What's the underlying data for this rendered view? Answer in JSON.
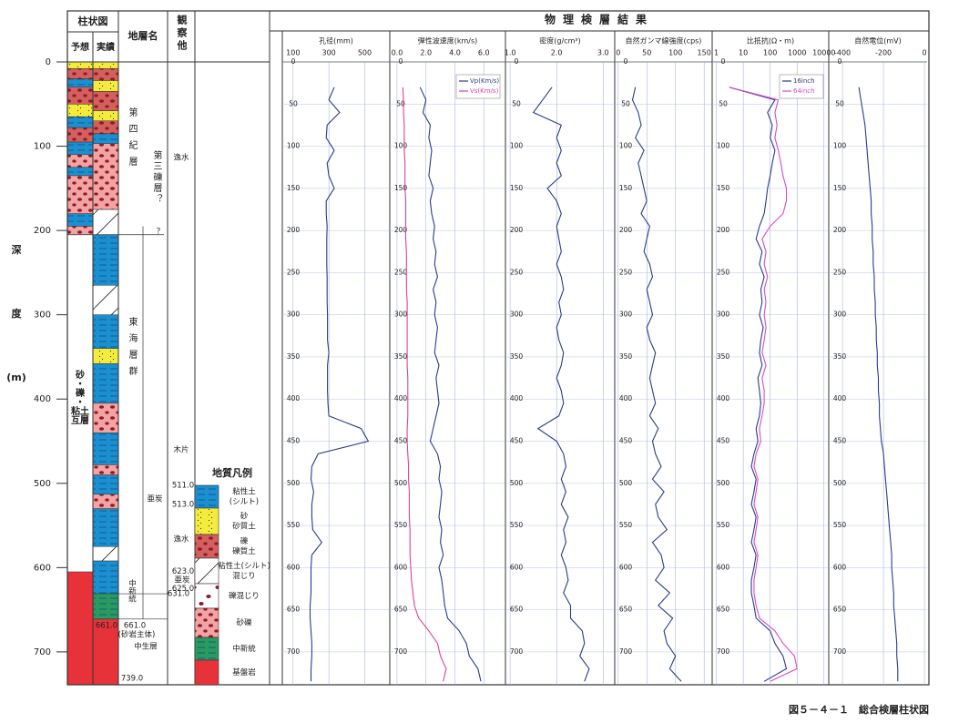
{
  "header": {
    "column_title": "柱状図",
    "predicted": "予想",
    "actual": "実績",
    "strata": "地層名",
    "observations": "観察他"
  },
  "depth_axis": {
    "label": [
      "深",
      "度",
      "(m)"
    ],
    "ylim": [
      0,
      739
    ],
    "yticks": [
      0,
      100,
      200,
      300,
      400,
      500,
      600,
      700
    ]
  },
  "column": {
    "legend_title": "地質凡例",
    "lithologies": [
      {
        "label": [
          "粘性土",
          "(シルト)"
        ],
        "color": "#1c8fd0",
        "pattern": "lines",
        "predicted": [
          [
            20,
            30
          ],
          [
            65,
            78
          ],
          [
            95,
            110
          ],
          [
            125,
            135
          ],
          [
            180,
            195
          ]
        ],
        "actual": [
          [
            85,
            97
          ],
          [
            205,
            265
          ],
          [
            300,
            340
          ],
          [
            358,
            405
          ],
          [
            440,
            478
          ],
          [
            490,
            513
          ],
          [
            530,
            575
          ],
          [
            592,
            631
          ]
        ]
      },
      {
        "label": [
          "砂",
          "砂質土"
        ],
        "color": "#f3ec3c",
        "pattern": "specks",
        "predicted": [
          [
            0,
            8
          ],
          [
            50,
            65
          ]
        ],
        "actual": [
          [
            0,
            8
          ],
          [
            22,
            35
          ],
          [
            58,
            70
          ],
          [
            340,
            358
          ]
        ]
      },
      {
        "label": [
          "礫",
          "礫質土"
        ],
        "color": "#d4605e",
        "pattern": "dots",
        "predicted": [
          [
            8,
            20
          ],
          [
            30,
            50
          ],
          [
            78,
            95
          ]
        ],
        "actual": [
          [
            8,
            22
          ],
          [
            35,
            58
          ],
          [
            70,
            85
          ]
        ]
      },
      {
        "label": [
          "粘性土(シルト)",
          "混じり"
        ],
        "color": "#ffffff",
        "pattern": "slash",
        "actual": [
          [
            175,
            205
          ],
          [
            265,
            300
          ],
          [
            575,
            592
          ]
        ]
      },
      {
        "label": [
          "礫混じり"
        ],
        "color": "#ffffff",
        "pattern": "dot-slash"
      },
      {
        "label": [
          "砂礫"
        ],
        "color": "#f4a3a3",
        "pattern": "dots",
        "predicted": [
          [
            110,
            125
          ],
          [
            135,
            180
          ],
          [
            195,
            205
          ]
        ],
        "actual": [
          [
            97,
            175
          ],
          [
            405,
            440
          ],
          [
            478,
            490
          ],
          [
            513,
            530
          ]
        ]
      },
      {
        "label": [
          "中新統"
        ],
        "color": "#2a9a60",
        "pattern": "lines",
        "actual": [
          [
            631,
            661
          ]
        ]
      },
      {
        "label": [
          "基盤岩"
        ],
        "color": "#e8323a",
        "pattern": "none",
        "predicted": [
          [
            605,
            739
          ]
        ],
        "actual": [
          [
            661,
            739
          ]
        ]
      }
    ],
    "predicted_note": [
      "砂",
      "・",
      "礫",
      "・",
      "粘土",
      "互層"
    ],
    "notes": [
      "第四紀層",
      "第三礫層？",
      "？",
      "東海層群",
      "亜炭",
      "中新統",
      "(砂岩主体)",
      "中生層",
      "逸水",
      "木片",
      "逸水",
      "亜炭"
    ],
    "depth_marks": [
      {
        "value": 511,
        "label": "511.0"
      },
      {
        "value": 513,
        "label": "513.0"
      },
      {
        "value": 623,
        "label": "623.0"
      },
      {
        "value": 625,
        "label": "625.0"
      },
      {
        "value": 631,
        "label": "631.0"
      },
      {
        "value": 661,
        "label": "661.0"
      },
      {
        "value": 661,
        "label": "661.0"
      },
      {
        "value": 739,
        "label": "739.0"
      }
    ]
  },
  "logs": {
    "title": "物理検層結果",
    "grid": true,
    "depth": [
      30,
      45,
      60,
      75,
      90,
      105,
      120,
      135,
      150,
      165,
      180,
      195,
      210,
      225,
      240,
      255,
      270,
      285,
      300,
      315,
      330,
      345,
      360,
      375,
      390,
      405,
      420,
      435,
      450,
      465,
      480,
      495,
      510,
      525,
      540,
      555,
      570,
      585,
      600,
      615,
      630,
      645,
      660,
      675,
      690,
      705,
      720,
      735
    ],
    "depth_ticks": [
      0,
      50,
      100,
      150,
      200,
      250,
      300,
      350,
      400,
      450,
      500,
      550,
      600,
      650,
      700
    ],
    "panels": [
      {
        "type": "line",
        "title": "孔径(mm)",
        "xlim": [
          40,
          640
        ],
        "xticks": [
          100,
          300,
          500
        ],
        "series": [
          {
            "color": "#2b3a8c",
            "values": [
              330,
              300,
              360,
              290,
              285,
              330,
              290,
              300,
              330,
              285,
              285,
              290,
              288,
              288,
              288,
              290,
              290,
              290,
              292,
              292,
              292,
              300,
              292,
              292,
              292,
              295,
              300,
              480,
              520,
              240,
              205,
              200,
              215,
              205,
              205,
              210,
              260,
              205,
              200,
              200,
              200,
              195,
              195,
              200,
              205,
              205,
              200,
              200
            ]
          }
        ]
      },
      {
        "type": "line",
        "title": "弾性波速度(km/s)",
        "xlim": [
          -0.5,
          7.5
        ],
        "xticks": [
          {
            "value": 0,
            "label": "0.0"
          },
          {
            "value": 2,
            "label": "2.0"
          },
          {
            "value": 4,
            "label": "4.0"
          },
          {
            "value": 6,
            "label": "6.0"
          }
        ],
        "legend": "upper right",
        "series": [
          {
            "name": "Vp(Km/s)",
            "color": "#2b3a8c",
            "values": [
              1.6,
              2.0,
              1.8,
              2.3,
              2.2,
              2.4,
              2.3,
              2.2,
              2.5,
              2.3,
              2.4,
              2.6,
              2.5,
              2.7,
              2.6,
              2.8,
              2.5,
              2.7,
              2.6,
              2.8,
              2.7,
              2.6,
              2.9,
              2.7,
              2.8,
              2.9,
              2.7,
              2.5,
              2.3,
              2.8,
              3.0,
              2.9,
              3.1,
              3.0,
              2.9,
              3.1,
              3.0,
              3.2,
              2.9,
              3.1,
              3.2,
              3.3,
              3.5,
              4.3,
              4.8,
              5.0,
              5.6,
              5.8
            ]
          },
          {
            "name": "Vs(Km/s)",
            "color": "#e0409a",
            "values": [
              0.4,
              0.45,
              0.45,
              0.5,
              0.5,
              0.5,
              0.55,
              0.55,
              0.55,
              0.6,
              0.6,
              0.6,
              0.6,
              0.65,
              0.65,
              0.65,
              0.65,
              0.7,
              0.7,
              0.7,
              0.7,
              0.7,
              0.7,
              0.75,
              0.75,
              0.75,
              0.75,
              0.7,
              0.7,
              0.75,
              0.8,
              0.8,
              0.85,
              0.85,
              0.85,
              0.9,
              0.9,
              0.9,
              0.95,
              1.0,
              1.1,
              1.2,
              1.5,
              2.2,
              2.8,
              3.0,
              3.4,
              3.2
            ]
          }
        ]
      },
      {
        "type": "line",
        "title": "密度(g/cm³)",
        "xlim": [
          0.9,
          3.25
        ],
        "xticks": [
          {
            "value": 1,
            "label": "1.0"
          },
          {
            "value": 2,
            "label": "2.0"
          },
          {
            "value": 3,
            "label": "3.0"
          }
        ],
        "series": [
          {
            "color": "#2b3a8c",
            "values": [
              1.9,
              1.7,
              1.5,
              2.1,
              2.0,
              2.1,
              2.0,
              2.1,
              1.8,
              2.0,
              2.1,
              2.0,
              2.05,
              2.1,
              2.0,
              2.1,
              2.15,
              2.05,
              2.1,
              2.0,
              2.05,
              2.15,
              2.1,
              2.0,
              2.1,
              2.15,
              2.05,
              1.6,
              2.0,
              2.15,
              2.2,
              2.1,
              2.2,
              2.1,
              2.25,
              2.15,
              2.2,
              2.1,
              2.2,
              2.25,
              2.15,
              2.3,
              2.3,
              2.55,
              2.6,
              2.5,
              2.7,
              2.6
            ]
          }
        ]
      },
      {
        "type": "line",
        "title": "自然ガンマ線強度(cps)",
        "xlim": [
          -6,
          164
        ],
        "xticks": [
          0,
          50,
          100,
          150
        ],
        "series": [
          {
            "color": "#2b3a8c",
            "values": [
              30,
              25,
              35,
              40,
              30,
              45,
              35,
              40,
              45,
              50,
              40,
              55,
              50,
              45,
              55,
              60,
              50,
              55,
              60,
              50,
              55,
              65,
              60,
              55,
              60,
              65,
              55,
              70,
              60,
              65,
              75,
              60,
              80,
              65,
              70,
              85,
              60,
              75,
              80,
              65,
              90,
              70,
              95,
              80,
              85,
              100,
              90,
              110
            ]
          }
        ]
      },
      {
        "type": "line",
        "title": "比抵抗(Ω・m)",
        "log": true,
        "xlim": [
          0.7,
          15000
        ],
        "xticks": [
          1,
          10,
          100,
          1000,
          10000
        ],
        "legend": "upper right",
        "series": [
          {
            "name": "16inch",
            "color": "#2b3a8c",
            "values": [
              3,
              150,
              80,
              120,
              100,
              150,
              120,
              100,
              80,
              70,
              60,
              40,
              30,
              50,
              40,
              60,
              45,
              50,
              40,
              55,
              45,
              40,
              50,
              35,
              40,
              45,
              40,
              30,
              35,
              25,
              20,
              30,
              25,
              20,
              30,
              25,
              20,
              30,
              25,
              20,
              20,
              25,
              30,
              100,
              150,
              300,
              400,
              60
            ]
          },
          {
            "name": "64inch",
            "color": "#d84bc8",
            "values": [
              3,
              200,
              150,
              180,
              150,
              200,
              250,
              300,
              400,
              400,
              300,
              100,
              50,
              70,
              60,
              80,
              60,
              70,
              60,
              70,
              60,
              50,
              70,
              50,
              60,
              60,
              50,
              40,
              45,
              30,
              25,
              35,
              30,
              25,
              35,
              30,
              25,
              35,
              30,
              25,
              25,
              30,
              40,
              150,
              300,
              800,
              1000,
              100
            ]
          }
        ]
      },
      {
        "type": "line",
        "title": "自然電位(mV)",
        "xlim": [
          -467,
          13
        ],
        "xticks": [
          -400,
          -200,
          0
        ],
        "series": [
          {
            "color": "#2b3a8c",
            "values": [
              -320,
              -310,
              -300,
              -290,
              -285,
              -280,
              -275,
              -270,
              -265,
              -260,
              -260,
              -255,
              -255,
              -250,
              -250,
              -245,
              -245,
              -240,
              -240,
              -235,
              -235,
              -230,
              -230,
              -225,
              -225,
              -220,
              -220,
              -215,
              -210,
              -200,
              -195,
              -190,
              -185,
              -180,
              -175,
              -170,
              -165,
              -160,
              -160,
              -155,
              -150,
              -150,
              -145,
              -140,
              -135,
              -135,
              -130,
              -130
            ]
          }
        ]
      }
    ]
  },
  "caption": "図５－４－１　総合検層柱状図"
}
